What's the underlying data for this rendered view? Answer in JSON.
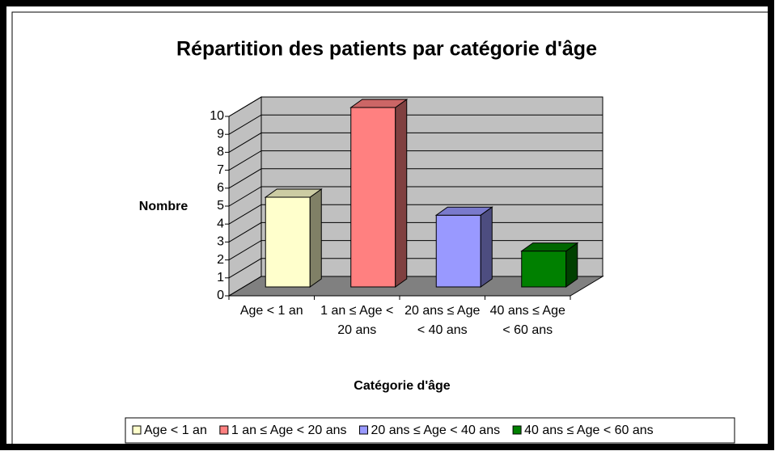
{
  "chart_data": {
    "type": "bar3d",
    "title": "Répartition des patients par catégorie d'âge",
    "x_label": "Catégorie d'âge",
    "y_label": "Nombre",
    "categories": [
      "Age < 1 an",
      "1 an ≤ Age < 20 ans",
      "20 ans ≤ Age < 40 ans",
      "40 ans ≤ Age < 60 ans"
    ],
    "values": [
      5,
      10,
      4,
      2
    ],
    "colors": [
      "#ffffcc",
      "#ff8080",
      "#9999ff",
      "#008000"
    ],
    "ylim": [
      0,
      10
    ],
    "yticks": [
      0,
      1,
      2,
      3,
      4,
      5,
      6,
      7,
      8,
      9,
      10
    ],
    "grid": true,
    "legend": "bottom"
  }
}
